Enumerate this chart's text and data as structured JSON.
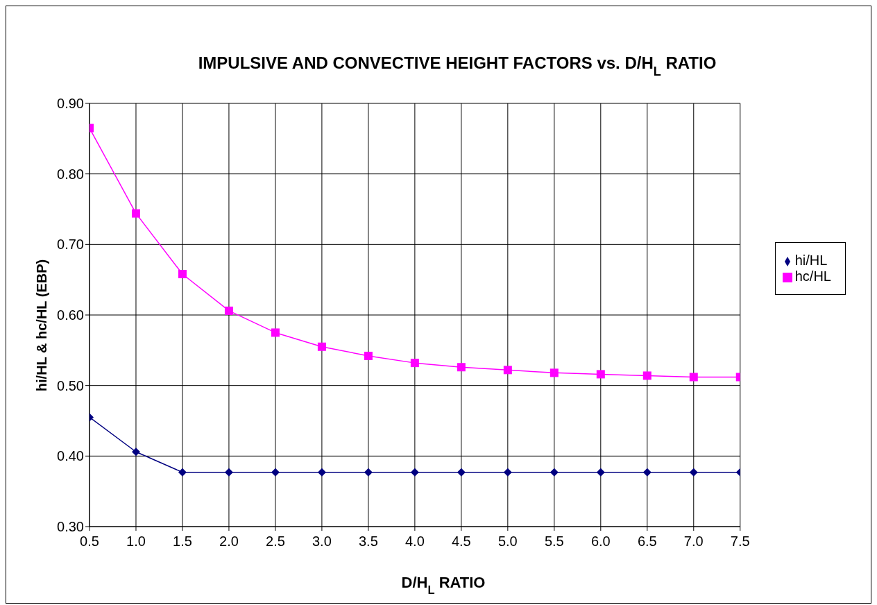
{
  "chart_data": {
    "type": "line",
    "title": "IMPULSIVE AND CONVECTIVE HEIGHT FACTORS vs. D/H$_{L}$ RATIO",
    "xlabel": "D/H$_{L}$  RATIO",
    "ylabel": "hi/HL  &  hc/HL   (EBP)",
    "x": [
      0.5,
      1.0,
      1.5,
      2.0,
      2.5,
      3.0,
      3.5,
      4.0,
      4.5,
      5.0,
      5.5,
      6.0,
      6.5,
      7.0,
      7.5
    ],
    "series": [
      {
        "name": "hi/HL",
        "color": "#000080",
        "marker": "diamond",
        "values": [
          0.455,
          0.406,
          0.377,
          0.377,
          0.377,
          0.377,
          0.377,
          0.377,
          0.377,
          0.377,
          0.377,
          0.377,
          0.377,
          0.377,
          0.377
        ]
      },
      {
        "name": "hc/HL",
        "color": "#ff00ff",
        "marker": "square",
        "values": [
          0.865,
          0.744,
          0.658,
          0.606,
          0.575,
          0.555,
          0.542,
          0.532,
          0.526,
          0.522,
          0.518,
          0.516,
          0.514,
          0.512,
          0.512
        ]
      }
    ],
    "xlim": [
      0.5,
      7.5
    ],
    "xticks": [
      {
        "value": 0.5,
        "label": "0.5"
      },
      {
        "value": 1,
        "label": "1.0"
      },
      {
        "value": 1.5,
        "label": "1.5"
      },
      {
        "value": 2,
        "label": "2.0"
      },
      {
        "value": 2.5,
        "label": "2.5"
      },
      {
        "value": 3,
        "label": "3.0"
      },
      {
        "value": 3.5,
        "label": "3.5"
      },
      {
        "value": 4,
        "label": "4.0"
      },
      {
        "value": 4.5,
        "label": "4.5"
      },
      {
        "value": 5,
        "label": "5.0"
      },
      {
        "value": 5.5,
        "label": "5.5"
      },
      {
        "value": 6,
        "label": "6.0"
      },
      {
        "value": 6.5,
        "label": "6.5"
      },
      {
        "value": 7,
        "label": "7.0"
      },
      {
        "value": 7.5,
        "label": "7.5"
      }
    ],
    "ylim": [
      0.3,
      0.9
    ],
    "yticks": [
      {
        "value": 0.3,
        "label": "0.30"
      },
      {
        "value": 0.4,
        "label": "0.40"
      },
      {
        "value": 0.5,
        "label": "0.50"
      },
      {
        "value": 0.6,
        "label": "0.60"
      },
      {
        "value": 0.7,
        "label": "0.70"
      },
      {
        "value": 0.8,
        "label": "0.80"
      },
      {
        "value": 0.9,
        "label": "0.90"
      }
    ],
    "grid": true,
    "legend": "right",
    "line_style": "solid"
  }
}
